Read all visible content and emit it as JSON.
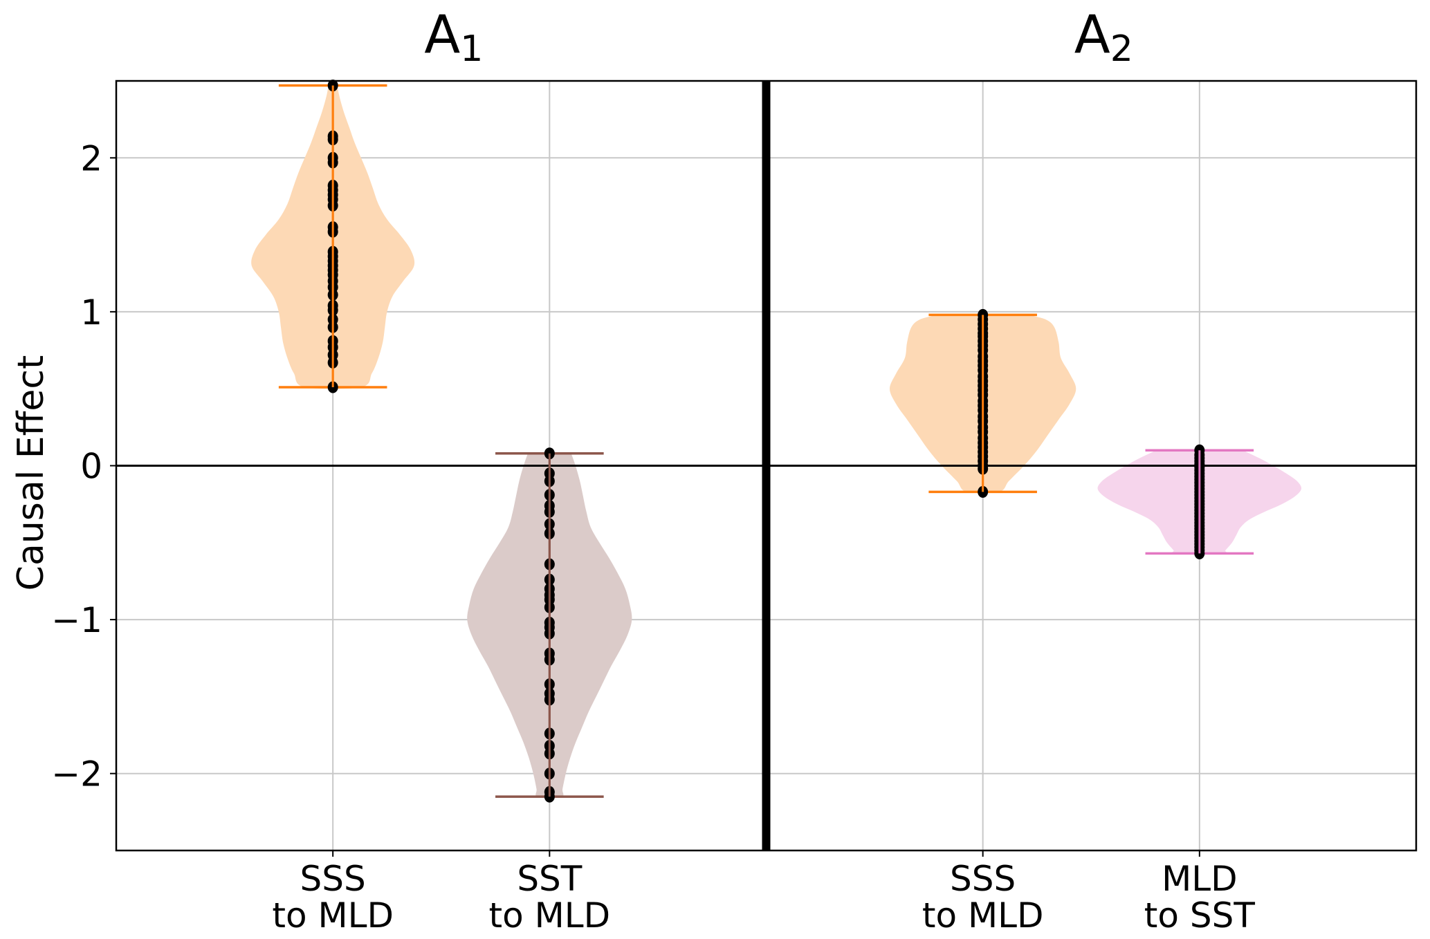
{
  "chart_data": {
    "type": "violin",
    "ylabel": "Causal Effect",
    "xlabel": "",
    "ylim": [
      -2.5,
      2.5
    ],
    "xlim": [
      0,
      6
    ],
    "yticks": [
      -2,
      -1,
      0,
      1,
      2
    ],
    "ytick_labels": [
      "−2",
      "−1",
      "0",
      "1",
      "2"
    ],
    "grid": true,
    "zero_line": 0,
    "panel_divider_x": 3,
    "panels": [
      {
        "title": "A",
        "title_subscript": "1",
        "center_x": 1.5
      },
      {
        "title": "A",
        "title_subscript": "2",
        "center_x": 4.5
      }
    ],
    "violins": [
      {
        "label_line1": "SSS",
        "label_line2": "to MLD",
        "panel": "A1",
        "position": 1,
        "color": "#ff7f0e",
        "fill": "#fdd9b5",
        "min": 0.51,
        "max": 2.47,
        "density_profile": [
          [
            0.51,
            0.26
          ],
          [
            0.6,
            0.36
          ],
          [
            0.7,
            0.42
          ],
          [
            0.8,
            0.46
          ],
          [
            0.9,
            0.48
          ],
          [
            1.0,
            0.5
          ],
          [
            1.1,
            0.55
          ],
          [
            1.2,
            0.65
          ],
          [
            1.3,
            0.75
          ],
          [
            1.4,
            0.72
          ],
          [
            1.5,
            0.62
          ],
          [
            1.6,
            0.5
          ],
          [
            1.7,
            0.42
          ],
          [
            1.8,
            0.37
          ],
          [
            1.9,
            0.32
          ],
          [
            2.0,
            0.26
          ],
          [
            2.1,
            0.2
          ],
          [
            2.2,
            0.15
          ],
          [
            2.3,
            0.1
          ],
          [
            2.4,
            0.06
          ],
          [
            2.47,
            0.04
          ]
        ],
        "points": [
          2.47,
          2.14,
          2.12,
          2.0,
          1.97,
          1.82,
          1.79,
          1.76,
          1.73,
          1.69,
          1.55,
          1.52,
          1.39,
          1.36,
          1.33,
          1.3,
          1.27,
          1.24,
          1.2,
          1.16,
          1.11,
          1.04,
          1.01,
          0.95,
          0.9,
          0.81,
          0.77,
          0.72,
          0.67,
          0.51
        ]
      },
      {
        "label_line1": "SST",
        "label_line2": "to MLD",
        "panel": "A1",
        "position": 2,
        "color": "#8c564b",
        "fill": "#dbcbc9",
        "min": -2.15,
        "max": 0.08,
        "density_profile": [
          [
            0.08,
            0.2
          ],
          [
            0.0,
            0.24
          ],
          [
            -0.1,
            0.28
          ],
          [
            -0.2,
            0.31
          ],
          [
            -0.3,
            0.34
          ],
          [
            -0.4,
            0.38
          ],
          [
            -0.5,
            0.46
          ],
          [
            -0.6,
            0.55
          ],
          [
            -0.7,
            0.63
          ],
          [
            -0.8,
            0.7
          ],
          [
            -0.9,
            0.74
          ],
          [
            -1.0,
            0.76
          ],
          [
            -1.1,
            0.72
          ],
          [
            -1.2,
            0.65
          ],
          [
            -1.3,
            0.57
          ],
          [
            -1.4,
            0.5
          ],
          [
            -1.5,
            0.43
          ],
          [
            -1.6,
            0.36
          ],
          [
            -1.7,
            0.3
          ],
          [
            -1.8,
            0.24
          ],
          [
            -1.9,
            0.19
          ],
          [
            -2.0,
            0.15
          ],
          [
            -2.1,
            0.12
          ],
          [
            -2.15,
            0.11
          ]
        ],
        "points": [
          0.08,
          -0.05,
          -0.1,
          -0.19,
          -0.26,
          -0.3,
          -0.38,
          -0.44,
          -0.64,
          -0.74,
          -0.8,
          -0.84,
          -0.87,
          -0.92,
          -1.02,
          -1.05,
          -1.09,
          -1.22,
          -1.26,
          -1.42,
          -1.48,
          -1.52,
          -1.74,
          -1.82,
          -1.87,
          -2.0,
          -2.12,
          -2.15
        ]
      },
      {
        "label_line1": "SSS",
        "label_line2": "to MLD",
        "panel": "A2",
        "position": 4,
        "color": "#ff7f0e",
        "fill": "#fdd9b5",
        "min": -0.17,
        "max": 0.98,
        "density_profile": [
          [
            0.98,
            0.42
          ],
          [
            0.95,
            0.58
          ],
          [
            0.9,
            0.66
          ],
          [
            0.8,
            0.7
          ],
          [
            0.7,
            0.72
          ],
          [
            0.6,
            0.8
          ],
          [
            0.5,
            0.86
          ],
          [
            0.4,
            0.8
          ],
          [
            0.3,
            0.7
          ],
          [
            0.2,
            0.6
          ],
          [
            0.1,
            0.5
          ],
          [
            0.0,
            0.38
          ],
          [
            -0.1,
            0.24
          ],
          [
            -0.17,
            0.15
          ]
        ],
        "points": [
          0.98,
          0.95,
          0.92,
          0.89,
          0.86,
          0.84,
          0.81,
          0.78,
          0.75,
          0.71,
          0.68,
          0.65,
          0.62,
          0.58,
          0.55,
          0.52,
          0.49,
          0.46,
          0.42,
          0.39,
          0.36,
          0.32,
          0.29,
          0.25,
          0.22,
          0.18,
          0.15,
          0.12,
          0.09,
          0.06,
          0.03,
          0.0,
          -0.02,
          -0.17
        ]
      },
      {
        "label_line1": "MLD",
        "label_line2": "to SST",
        "panel": "A2",
        "position": 5,
        "color": "#e377c2",
        "fill": "#f6d5ec",
        "min": -0.57,
        "max": 0.1,
        "density_profile": [
          [
            0.1,
            0.4
          ],
          [
            0.05,
            0.55
          ],
          [
            0.0,
            0.68
          ],
          [
            -0.05,
            0.8
          ],
          [
            -0.1,
            0.9
          ],
          [
            -0.15,
            0.94
          ],
          [
            -0.2,
            0.88
          ],
          [
            -0.25,
            0.76
          ],
          [
            -0.3,
            0.6
          ],
          [
            -0.35,
            0.46
          ],
          [
            -0.4,
            0.38
          ],
          [
            -0.45,
            0.34
          ],
          [
            -0.5,
            0.3
          ],
          [
            -0.55,
            0.24
          ],
          [
            -0.57,
            0.22
          ]
        ],
        "points": [
          0.1,
          0.07,
          0.05,
          0.03,
          0.01,
          -0.01,
          -0.03,
          -0.05,
          -0.07,
          -0.09,
          -0.11,
          -0.13,
          -0.15,
          -0.17,
          -0.19,
          -0.21,
          -0.23,
          -0.25,
          -0.27,
          -0.29,
          -0.31,
          -0.33,
          -0.35,
          -0.37,
          -0.39,
          -0.41,
          -0.43,
          -0.45,
          -0.47,
          -0.49,
          -0.51,
          -0.53,
          -0.55,
          -0.57
        ]
      }
    ]
  }
}
